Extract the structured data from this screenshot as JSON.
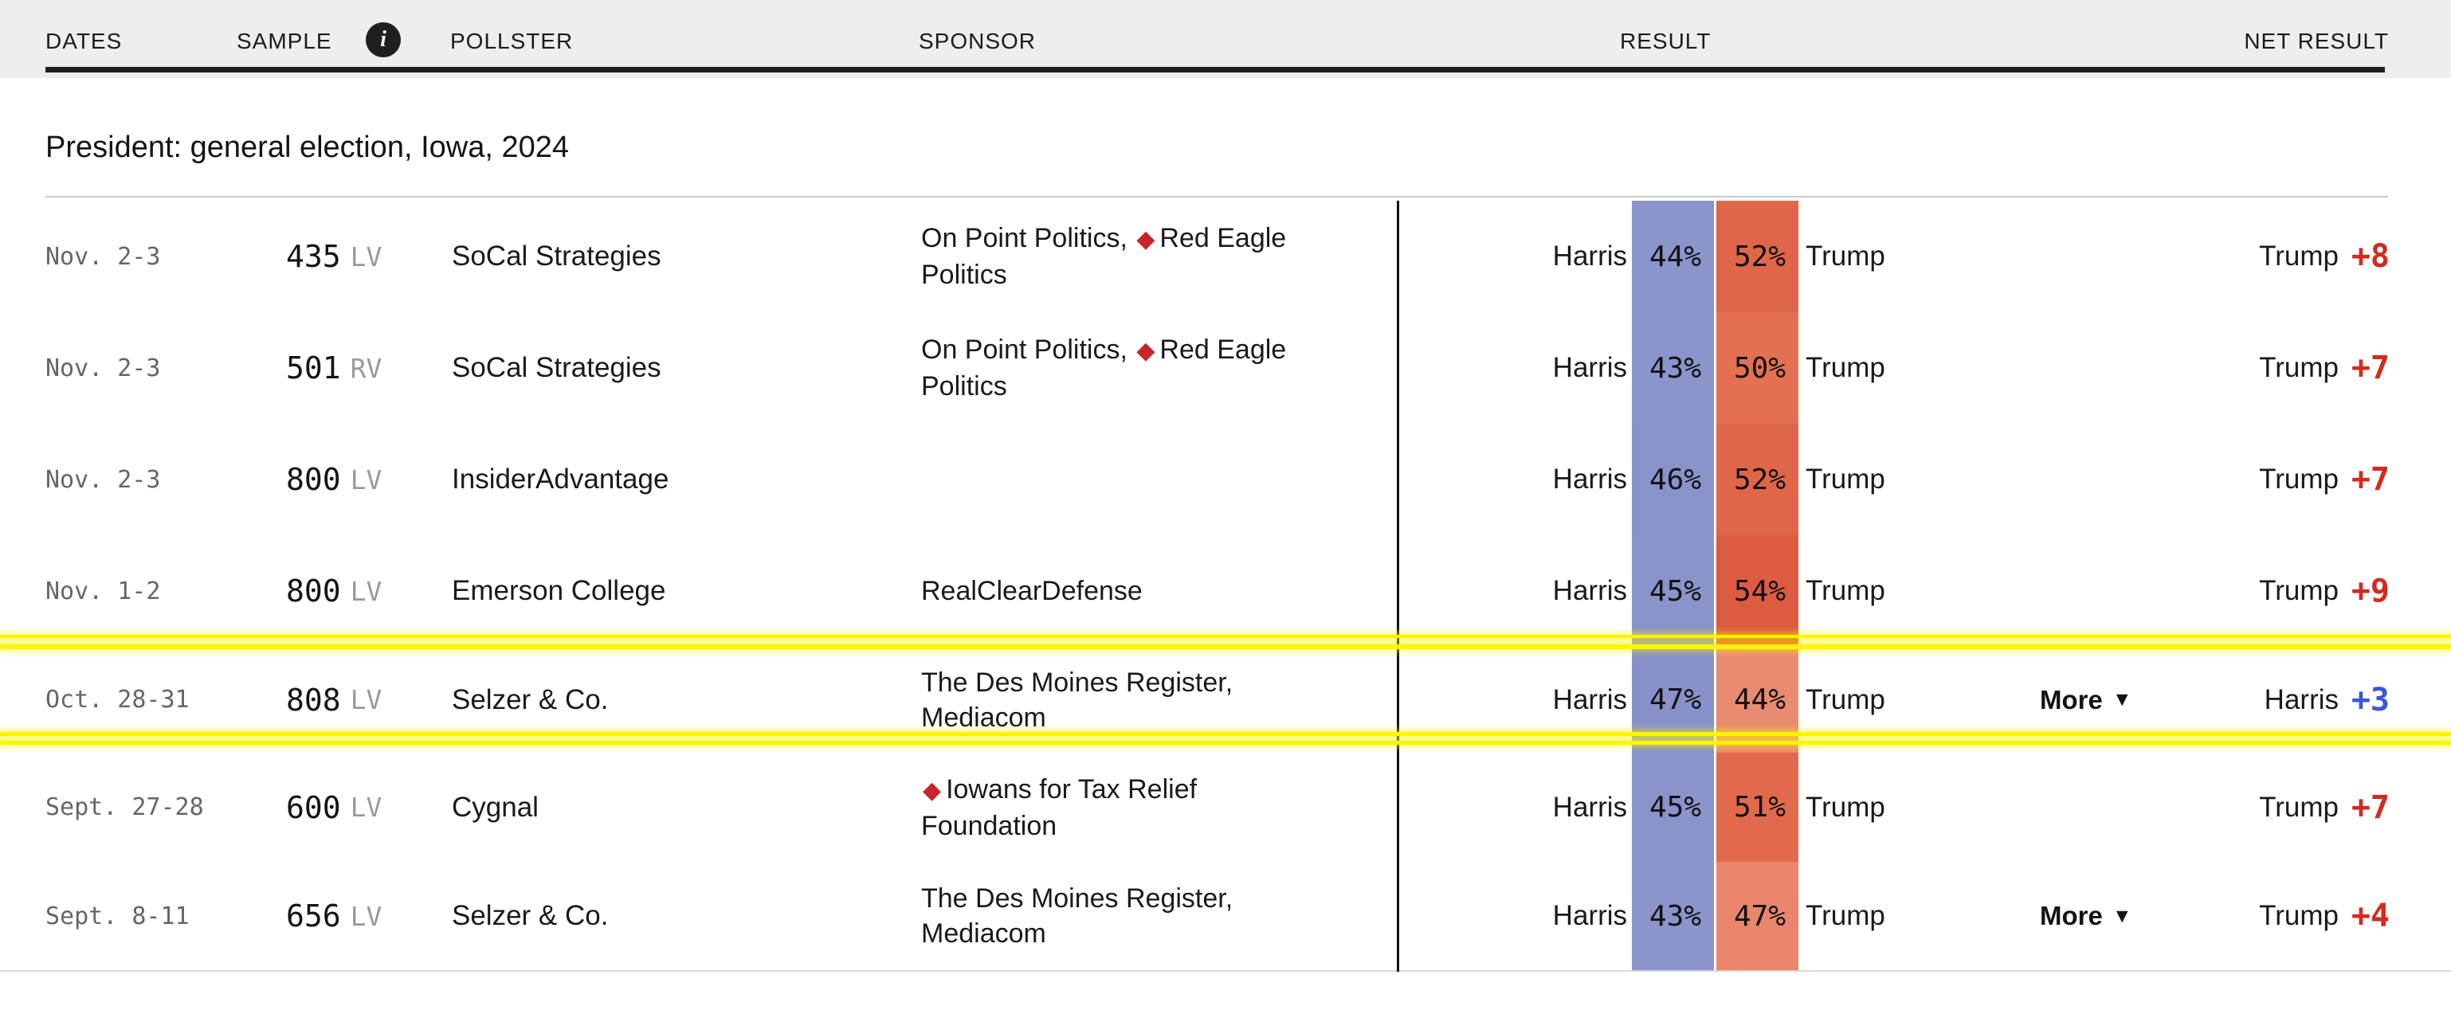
{
  "title": "President: general election, Iowa, 2024",
  "header": {
    "columns": [
      {
        "label": "DATES"
      },
      {
        "label": "SAMPLE",
        "has_info_icon": true
      },
      {
        "label": "POLLSTER"
      },
      {
        "label": "SPONSOR"
      },
      {
        "label": "RESULT"
      },
      {
        "label": "NET RESULT"
      }
    ]
  },
  "icons": {
    "info": "i",
    "diamond": "◆",
    "more_caret": "▼"
  },
  "colors": {
    "header_background": "#eeeeed",
    "net_red": "#d42a20",
    "net_blue": "#3b57d6",
    "diamond_red": "#c9252b",
    "annotation_yellow": "#fdf400",
    "dem_band_base": "#8a93ca",
    "rep_band_base": "#e0664a"
  },
  "candidates": {
    "dem": "Harris",
    "rep": "Trump"
  },
  "more_label": "More",
  "rows": [
    {
      "dates": "Nov. 2-3",
      "sample": "435",
      "sample_type": "LV",
      "pollster": "SoCal Strategies",
      "sponsor_before": "On Point Politics, ",
      "sponsor_diamond": true,
      "sponsor_after": "Red Eagle Politics",
      "dem_pct": "44%",
      "rep_pct": "52%",
      "dem_color": "#8b94cb",
      "rep_color": "#e0664a",
      "more": false,
      "net_label": "Trump",
      "net_value": "+8",
      "net_color": "net_red"
    },
    {
      "dates": "Nov. 2-3",
      "sample": "501",
      "sample_type": "RV",
      "pollster": "SoCal Strategies",
      "sponsor_before": "On Point Politics, ",
      "sponsor_diamond": true,
      "sponsor_after": "Red Eagle Politics",
      "dem_pct": "43%",
      "rep_pct": "50%",
      "dem_color": "#8b94cb",
      "rep_color": "#e3714f",
      "more": false,
      "net_label": "Trump",
      "net_value": "+7",
      "net_color": "net_red"
    },
    {
      "dates": "Nov. 2-3",
      "sample": "800",
      "sample_type": "LV",
      "pollster": "InsiderAdvantage",
      "sponsor_before": "",
      "sponsor_diamond": false,
      "sponsor_after": "",
      "dem_pct": "46%",
      "rep_pct": "52%",
      "dem_color": "#8992c9",
      "rep_color": "#e0664a",
      "more": false,
      "net_label": "Trump",
      "net_value": "+7",
      "net_color": "net_red"
    },
    {
      "dates": "Nov. 1-2",
      "sample": "800",
      "sample_type": "LV",
      "pollster": "Emerson College",
      "sponsor_before": "",
      "sponsor_diamond": false,
      "sponsor_after": "RealClearDefense",
      "dem_pct": "45%",
      "rep_pct": "54%",
      "dem_color": "#8a93ca",
      "rep_color": "#dd5b41",
      "more": false,
      "net_label": "Trump",
      "net_value": "+9",
      "net_color": "net_red"
    },
    {
      "dates": "Oct. 28-31",
      "sample": "808",
      "sample_type": "LV",
      "pollster": "Selzer & Co.",
      "sponsor_before": "",
      "sponsor_diamond": false,
      "sponsor_after": "The Des Moines Register, Mediacom",
      "dem_pct": "47%",
      "rep_pct": "44%",
      "dem_color": "#8891c9",
      "rep_color": "#e98b71",
      "more": true,
      "net_label": "Harris",
      "net_value": "+3",
      "net_color": "net_blue",
      "highlighted": true
    },
    {
      "dates": "Sept. 27-28",
      "sample": "600",
      "sample_type": "LV",
      "pollster": "Cygnal",
      "sponsor_before": "",
      "sponsor_diamond": true,
      "sponsor_after": "Iowans for Tax Relief Foundation",
      "dem_pct": "45%",
      "rep_pct": "51%",
      "dem_color": "#8a93ca",
      "rep_color": "#e16a4d",
      "more": false,
      "net_label": "Trump",
      "net_value": "+7",
      "net_color": "net_red"
    },
    {
      "dates": "Sept. 8-11",
      "sample": "656",
      "sample_type": "LV",
      "pollster": "Selzer & Co.",
      "sponsor_before": "",
      "sponsor_diamond": false,
      "sponsor_after": "The Des Moines Register, Mediacom",
      "dem_pct": "43%",
      "rep_pct": "47%",
      "dem_color": "#8b94cb",
      "rep_color": "#e9866b",
      "more": true,
      "net_label": "Trump",
      "net_value": "+4",
      "net_color": "net_red"
    }
  ]
}
